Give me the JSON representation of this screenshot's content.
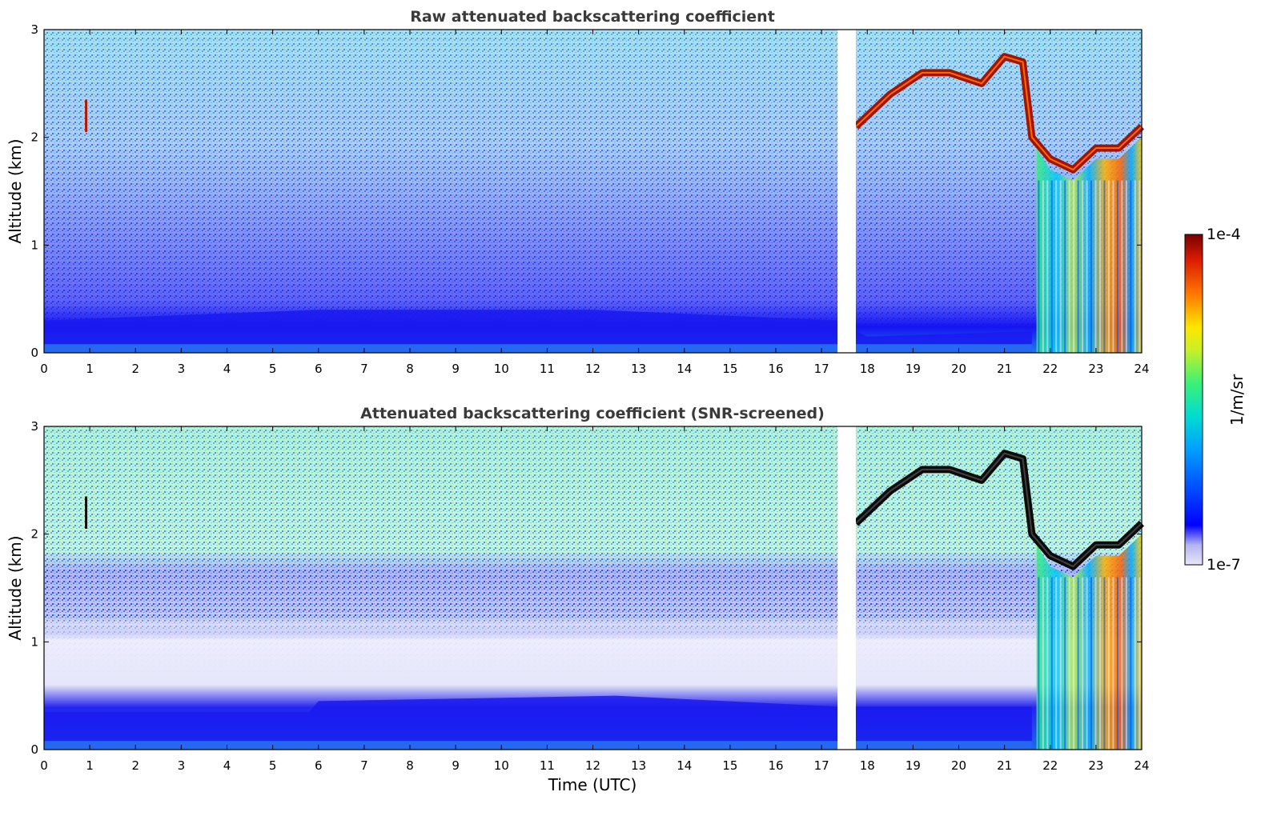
{
  "chart_data": [
    {
      "type": "heatmap",
      "title": "Raw attenuated backscattering coefficient",
      "xlabel": "",
      "ylabel": "Altitude (km)",
      "xlim": [
        0,
        24
      ],
      "ylim": [
        0,
        3
      ],
      "x_ticks": [
        "0",
        "1",
        "2",
        "3",
        "4",
        "5",
        "6",
        "7",
        "8",
        "9",
        "10",
        "11",
        "12",
        "13",
        "14",
        "15",
        "16",
        "17",
        "18",
        "19",
        "20",
        "21",
        "22",
        "23",
        "24"
      ],
      "y_ticks": [
        "0",
        "1",
        "2",
        "3"
      ],
      "data_gaps_utc": [
        [
          17.35,
          17.75
        ]
      ],
      "features": {
        "boundary_layer_top_km": [
          [
            0,
            0.3
          ],
          [
            6,
            0.4
          ],
          [
            12,
            0.4
          ],
          [
            17.3,
            0.3
          ],
          [
            18,
            0.15
          ],
          [
            21.6,
            0.2
          ]
        ],
        "cloud_layer_top_km": [
          [
            17.75,
            2.1
          ],
          [
            18.5,
            2.4
          ],
          [
            19.2,
            2.6
          ],
          [
            19.8,
            2.6
          ],
          [
            20.5,
            2.5
          ],
          [
            21.0,
            2.75
          ],
          [
            21.4,
            2.7
          ],
          [
            21.6,
            2.0
          ],
          [
            22.0,
            1.8
          ],
          [
            22.5,
            1.7
          ],
          [
            23.0,
            1.9
          ],
          [
            23.5,
            1.9
          ],
          [
            24.0,
            2.1
          ]
        ],
        "isolated_cloud": {
          "time_utc": 0.92,
          "altitude_km": [
            2.05,
            2.35
          ]
        },
        "precipitation_period_utc": [
          21.7,
          24
        ]
      }
    },
    {
      "type": "heatmap",
      "title": "Attenuated backscattering coefficient (SNR-screened)",
      "xlabel": "Time (UTC)",
      "ylabel": "Altitude (km)",
      "xlim": [
        0,
        24
      ],
      "ylim": [
        0,
        3
      ],
      "x_ticks": [
        "0",
        "1",
        "2",
        "3",
        "4",
        "5",
        "6",
        "7",
        "8",
        "9",
        "10",
        "11",
        "12",
        "13",
        "14",
        "15",
        "16",
        "17",
        "18",
        "19",
        "20",
        "21",
        "22",
        "23",
        "24"
      ],
      "y_ticks": [
        "0",
        "1",
        "2",
        "3"
      ],
      "data_gaps_utc": [
        [
          17.35,
          17.75
        ]
      ],
      "features": {
        "boundary_layer_top_km": [
          [
            0,
            0.35
          ],
          [
            5.8,
            0.35
          ],
          [
            6,
            0.45
          ],
          [
            12.5,
            0.5
          ],
          [
            17.3,
            0.4
          ],
          [
            18,
            0.4
          ],
          [
            21.6,
            0.4
          ]
        ],
        "residual_layer_km": [
          0.6,
          1.2
        ]
      }
    }
  ],
  "colorbar": {
    "label": "1/m/sr",
    "max_label": "1e-4",
    "min_label": "1e-7",
    "scale": "log",
    "colormap": [
      "#e6e6fa",
      "#b4b4f0",
      "#0000ff",
      "#00c8ff",
      "#32e6aa",
      "#b4f03c",
      "#ffe600",
      "#ff7800",
      "#dc1e00",
      "#7a0000"
    ]
  }
}
